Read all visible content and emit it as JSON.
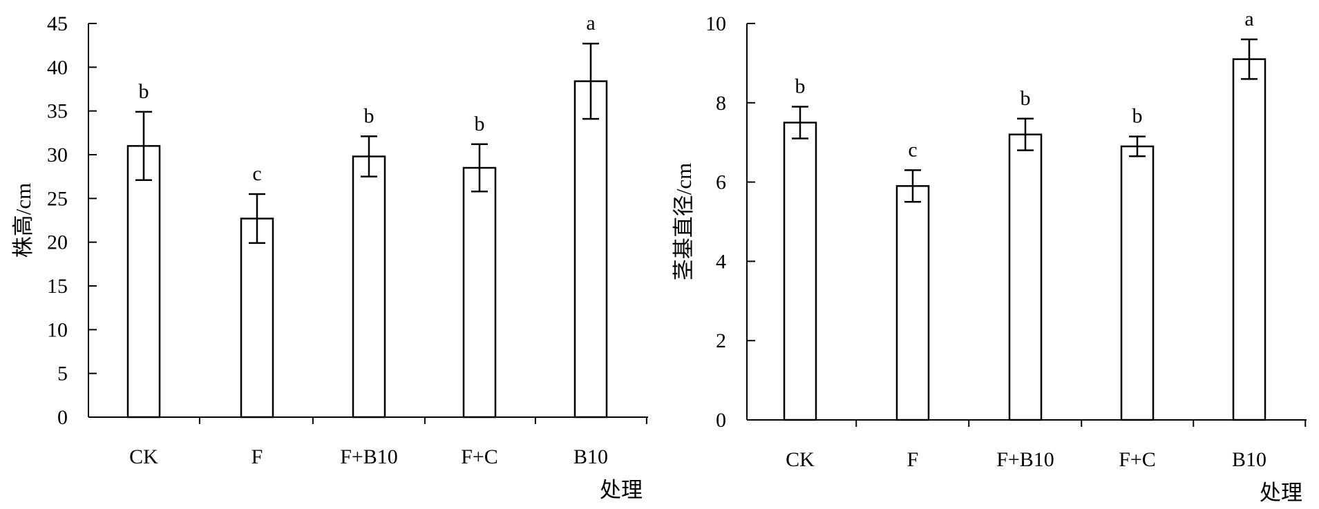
{
  "chart_data": [
    {
      "type": "bar",
      "categories": [
        "CK",
        "F",
        "F+B10",
        "F+C",
        "B10"
      ],
      "values": [
        31.0,
        22.7,
        29.8,
        28.5,
        38.4
      ],
      "errors": [
        3.9,
        2.8,
        2.3,
        2.7,
        4.3
      ],
      "significance": [
        "b",
        "c",
        "b",
        "b",
        "a"
      ],
      "xlabel": "处理",
      "ylabel": "株高/cm",
      "ylim": [
        0,
        45
      ],
      "yticks": [
        0,
        5,
        10,
        15,
        20,
        25,
        30,
        35,
        40,
        45
      ],
      "grid": false,
      "colors": {
        "bar_fill": "#ffffff",
        "bar_stroke": "#000000"
      }
    },
    {
      "type": "bar",
      "categories": [
        "CK",
        "F",
        "F+B10",
        "F+C",
        "B10"
      ],
      "values": [
        7.5,
        5.9,
        7.2,
        6.9,
        9.1
      ],
      "errors": [
        0.4,
        0.4,
        0.4,
        0.25,
        0.5
      ],
      "significance": [
        "b",
        "c",
        "b",
        "b",
        "a"
      ],
      "xlabel": "处理",
      "ylabel": "茎基直径/cm",
      "ylim": [
        0,
        10
      ],
      "yticks": [
        0,
        2,
        4,
        6,
        8,
        10
      ],
      "grid": false,
      "colors": {
        "bar_fill": "#ffffff",
        "bar_stroke": "#000000"
      }
    }
  ]
}
